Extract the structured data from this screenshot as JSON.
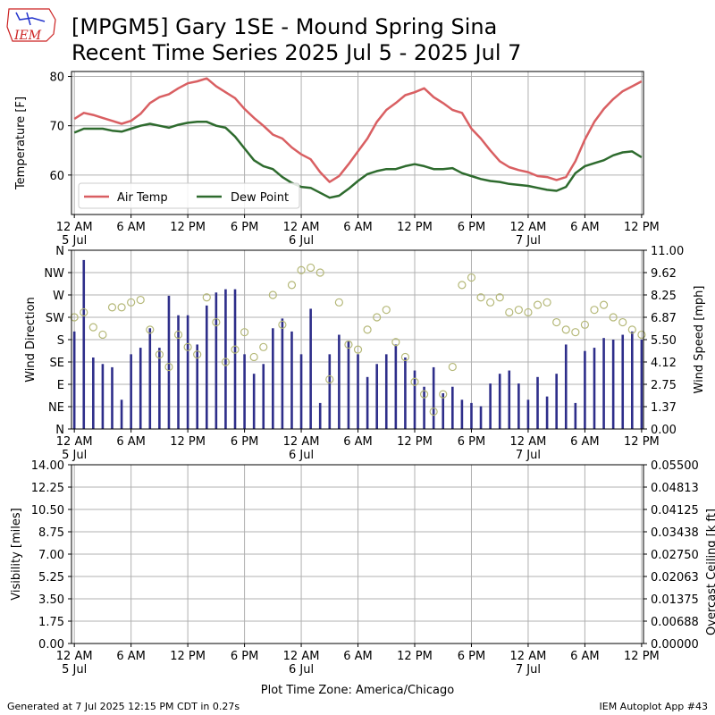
{
  "page": {
    "title_line1": "[MPGM5] Gary 1SE - Mound Spring Sina",
    "title_line2": "Recent Time Series 2025 Jul 5 - 2025 Jul 7",
    "logo_text": "IEM",
    "footer_left": "Generated at 7 Jul 2025 12:15 PM CDT in 0.27s",
    "footer_right": "IEM Autoplot App #43",
    "timezone_label": "Plot Time Zone: America/Chicago"
  },
  "colors": {
    "air_temp": "#d95f62",
    "dew_point": "#2e6b2e",
    "wind_bar": "#2e2e8a",
    "wind_dir": "#b5b878",
    "ceiling_label": "#008000",
    "grid": "#b0b0b0"
  },
  "x_axis": {
    "tick_labels": [
      "12 AM",
      "6 AM",
      "12 PM",
      "6 PM",
      "12 AM",
      "6 AM",
      "12 PM",
      "6 PM",
      "12 AM",
      "6 AM",
      "12 PM"
    ],
    "date_labels": [
      {
        "index": 0,
        "label": "5 Jul"
      },
      {
        "index": 4,
        "label": "6 Jul"
      },
      {
        "index": 8,
        "label": "7 Jul"
      }
    ]
  },
  "chart_data": [
    {
      "type": "line",
      "ylabel": "Temperature [F]",
      "ylim": [
        52,
        81
      ],
      "yticks": [
        60,
        70,
        80
      ],
      "x_units": "hours since 2025-07-05 00:00 CDT",
      "xlim": [
        -0.3,
        60.2
      ],
      "grid": true,
      "legend_position": "lower-left",
      "series": [
        {
          "name": "Air Temp",
          "x": [
            0,
            1,
            2,
            3,
            4,
            5,
            6,
            7,
            8,
            9,
            10,
            11,
            12,
            13,
            14,
            15,
            16,
            17,
            18,
            19,
            20,
            21,
            22,
            23,
            24,
            25,
            26,
            27,
            28,
            29,
            30,
            31,
            32,
            33,
            34,
            35,
            36,
            37,
            38,
            39,
            40,
            41,
            42,
            43,
            44,
            45,
            46,
            47,
            48,
            49,
            50,
            51,
            52,
            53,
            54,
            55,
            56,
            57,
            58,
            59,
            60
          ],
          "values": [
            71.4,
            72.6,
            72.2,
            71.6,
            71.0,
            70.4,
            71.0,
            72.4,
            74.6,
            75.8,
            76.4,
            77.6,
            78.6,
            79.0,
            79.6,
            78.0,
            76.8,
            75.6,
            73.4,
            71.6,
            70.0,
            68.2,
            67.4,
            65.6,
            64.2,
            63.2,
            60.6,
            58.6,
            59.8,
            62.2,
            64.8,
            67.4,
            70.8,
            73.2,
            74.6,
            76.2,
            76.8,
            77.6,
            75.8,
            74.6,
            73.2,
            72.6,
            69.4,
            67.4,
            65.0,
            62.8,
            61.6,
            61.0,
            60.6,
            59.8,
            59.6,
            59.0,
            59.6,
            62.8,
            67.2,
            70.8,
            73.4,
            75.4,
            77.0,
            78.0,
            79.0
          ]
        },
        {
          "name": "Dew Point",
          "x": [
            0,
            1,
            2,
            3,
            4,
            5,
            6,
            7,
            8,
            9,
            10,
            11,
            12,
            13,
            14,
            15,
            16,
            17,
            18,
            19,
            20,
            21,
            22,
            23,
            24,
            25,
            26,
            27,
            28,
            29,
            30,
            31,
            32,
            33,
            34,
            35,
            36,
            37,
            38,
            39,
            40,
            41,
            42,
            43,
            44,
            45,
            46,
            47,
            48,
            49,
            50,
            51,
            52,
            53,
            54,
            55,
            56,
            57,
            58,
            59,
            60
          ],
          "values": [
            68.6,
            69.4,
            69.4,
            69.4,
            69.0,
            68.8,
            69.4,
            70.0,
            70.4,
            70.0,
            69.6,
            70.2,
            70.6,
            70.8,
            70.8,
            70.0,
            69.6,
            67.8,
            65.4,
            63.0,
            61.8,
            61.2,
            59.6,
            58.4,
            57.6,
            57.4,
            56.4,
            55.4,
            55.8,
            57.2,
            58.8,
            60.2,
            60.8,
            61.2,
            61.2,
            61.8,
            62.2,
            61.8,
            61.2,
            61.2,
            61.4,
            60.4,
            59.8,
            59.2,
            58.8,
            58.6,
            58.2,
            58.0,
            57.8,
            57.4,
            57.0,
            56.8,
            57.6,
            60.4,
            61.8,
            62.4,
            63.0,
            64.0,
            64.6,
            64.8,
            63.6
          ]
        }
      ]
    },
    {
      "type": "bar",
      "ylabel": "Wind Direction",
      "ylabel_right": "Wind Speed [mph]",
      "direction_ticks": [
        "N",
        "NE",
        "E",
        "SE",
        "S",
        "SW",
        "W",
        "NW",
        "N"
      ],
      "speed_ticks": [
        "0.00",
        "1.37",
        "2.75",
        "4.12",
        "5.50",
        "6.87",
        "8.25",
        "9.62",
        "11.00"
      ],
      "speed_ylim": [
        0,
        11
      ],
      "direction_ylim": [
        0,
        360
      ],
      "x_units": "hours since 2025-07-05 00:00 CDT",
      "xlim": [
        -0.3,
        60.2
      ],
      "grid": true,
      "series": [
        {
          "name": "Wind Speed",
          "x": [
            0,
            1,
            2,
            3,
            4,
            5,
            6,
            7,
            8,
            9,
            10,
            11,
            12,
            13,
            14,
            15,
            16,
            17,
            18,
            19,
            20,
            21,
            22,
            23,
            24,
            25,
            26,
            27,
            28,
            29,
            30,
            31,
            32,
            33,
            34,
            35,
            36,
            37,
            38,
            39,
            40,
            41,
            42,
            43,
            44,
            45,
            46,
            47,
            48,
            49,
            50,
            51,
            52,
            53,
            54,
            55,
            56,
            57,
            58,
            59,
            60
          ],
          "values": [
            6.0,
            10.4,
            4.4,
            4.0,
            3.8,
            1.8,
            4.6,
            5.0,
            6.2,
            5.0,
            8.2,
            7.0,
            7.0,
            5.2,
            7.6,
            8.4,
            8.6,
            8.6,
            4.6,
            3.4,
            4.0,
            6.2,
            6.8,
            6.0,
            4.6,
            7.4,
            1.6,
            4.6,
            5.8,
            5.4,
            4.6,
            3.2,
            4.0,
            4.6,
            5.2,
            4.4,
            3.6,
            2.6,
            3.8,
            2.2,
            2.6,
            1.8,
            1.6,
            1.4,
            2.8,
            3.4,
            3.6,
            2.8,
            1.8,
            3.2,
            2.0,
            3.4,
            5.2,
            1.6,
            4.8,
            5.0,
            5.6,
            5.5,
            5.8,
            6.0,
            5.5
          ]
        },
        {
          "name": "Wind Direction",
          "x": [
            0,
            1,
            2,
            3,
            4,
            5,
            6,
            7,
            8,
            9,
            10,
            11,
            12,
            13,
            14,
            15,
            16,
            17,
            18,
            19,
            20,
            21,
            22,
            23,
            24,
            25,
            26,
            27,
            28,
            29,
            30,
            31,
            32,
            33,
            34,
            35,
            36,
            37,
            38,
            39,
            40,
            41,
            42,
            43,
            44,
            45,
            46,
            47,
            48,
            49,
            50,
            51,
            52,
            53,
            54,
            55,
            56,
            57,
            58,
            59,
            60
          ],
          "values": [
            225,
            235,
            205,
            190,
            245,
            245,
            255,
            260,
            200,
            150,
            125,
            190,
            165,
            150,
            265,
            215,
            135,
            160,
            195,
            145,
            165,
            270,
            210,
            290,
            320,
            325,
            315,
            100,
            255,
            170,
            160,
            200,
            225,
            240,
            175,
            145,
            95,
            70,
            35,
            70,
            125,
            290,
            305,
            265,
            255,
            265,
            235,
            240,
            235,
            250,
            255,
            215,
            200,
            195,
            210,
            240,
            250,
            225,
            215,
            200,
            190
          ]
        }
      ]
    },
    {
      "type": "line",
      "ylabel": "Visibility [miles]",
      "ylabel_right": "Overcast Ceiling [k ft]",
      "left_ticks": [
        "0.00",
        "1.75",
        "3.50",
        "5.25",
        "7.00",
        "8.75",
        "10.50",
        "12.25",
        "14.00"
      ],
      "right_ticks": [
        "0.00000",
        "0.00688",
        "0.01375",
        "0.02063",
        "0.02750",
        "0.03438",
        "0.04125",
        "0.04813",
        "0.05500"
      ],
      "ylim": [
        0,
        14
      ],
      "ylim_right": [
        0,
        0.055
      ],
      "grid": true,
      "series": []
    }
  ]
}
